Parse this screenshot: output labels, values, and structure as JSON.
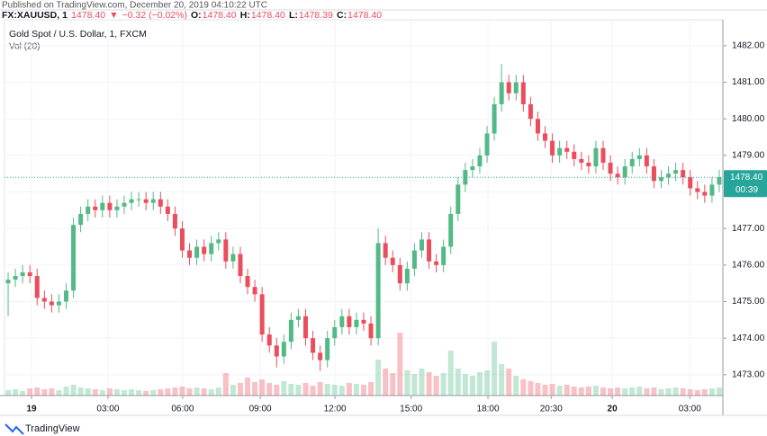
{
  "published": "Published on TradingView.com, December 20, 2019 04:10:22 UTC",
  "header": {
    "symbol": "FX:XAUUSD, 1",
    "price": "1478.40",
    "arrow": "▼",
    "change": "−0.32 (−0.02%)",
    "open_label": "O:",
    "open": "1478.40",
    "high_label": "H:",
    "high": "1478.40",
    "low_label": "L:",
    "low": "1478.39",
    "close_label": "C:",
    "close": "1478.40"
  },
  "footer": {
    "brand": "TradingView"
  },
  "chart_data": {
    "type": "candlestick",
    "title": "Gold Spot / U.S. Dollar, 1, FXCM",
    "volume_label": "Vol (20)",
    "up_color": "#53b987",
    "down_color": "#eb4d5c",
    "grid": true,
    "xlim": [
      0,
      100
    ],
    "ylim": [
      1472.43,
      1482.71
    ],
    "vol_ylim": [
      0,
      100
    ],
    "xticks": [
      {
        "value": 3.76,
        "label": "19"
      },
      {
        "value": 14.4,
        "label": "03:00"
      },
      {
        "value": 24.8,
        "label": "06:00"
      },
      {
        "value": 35.6,
        "label": "09:00"
      },
      {
        "value": 46.0,
        "label": "12:00"
      },
      {
        "value": 56.6,
        "label": "15:00"
      },
      {
        "value": 67.3,
        "label": "18:00"
      },
      {
        "value": 76.1,
        "label": "20:30"
      },
      {
        "value": 84.6,
        "label": "20"
      },
      {
        "value": 95.4,
        "label": "03:00"
      }
    ],
    "yticks": [
      {
        "value": 1473,
        "label": "1473.00"
      },
      {
        "value": 1474,
        "label": "1474.00"
      },
      {
        "value": 1475,
        "label": "1475.00"
      },
      {
        "value": 1476,
        "label": "1476.00"
      },
      {
        "value": 1477,
        "label": "1477.00"
      },
      {
        "value": 1478,
        "label": "1478.00"
      },
      {
        "value": 1479,
        "label": "1479.00"
      },
      {
        "value": 1480,
        "label": "1480.00"
      },
      {
        "value": 1481,
        "label": "1481.00"
      },
      {
        "value": 1482,
        "label": "1482.00"
      }
    ],
    "last_price": {
      "value": 1478.4,
      "label": "1478.40"
    },
    "countdown": "00:39",
    "open": [
      1475.5,
      1475.6,
      1475.7,
      1475.8,
      1475.7,
      1475.1,
      1475.0,
      1474.9,
      1475.0,
      1475.3,
      1477.1,
      1477.4,
      1477.6,
      1477.5,
      1477.7,
      1477.5,
      1477.6,
      1477.7,
      1477.8,
      1477.8,
      1477.7,
      1477.8,
      1477.6,
      1477.4,
      1477.0,
      1476.4,
      1476.2,
      1476.5,
      1476.3,
      1476.6,
      1476.7,
      1476.1,
      1476.3,
      1475.7,
      1475.4,
      1475.2,
      1474.1,
      1473.8,
      1473.5,
      1473.9,
      1474.5,
      1474.6,
      1474.0,
      1473.6,
      1473.4,
      1474.0,
      1474.3,
      1474.6,
      1474.3,
      1474.5,
      1474.4,
      1474.0,
      1476.6,
      1476.2,
      1476.0,
      1475.5,
      1475.9,
      1476.4,
      1476.7,
      1476.1,
      1476.0,
      1476.5,
      1477.4,
      1478.2,
      1478.6,
      1478.7,
      1479.0,
      1479.6,
      1480.4,
      1481.0,
      1480.7,
      1481.0,
      1480.4,
      1480.0,
      1479.6,
      1479.4,
      1479.0,
      1479.2,
      1479.1,
      1478.9,
      1478.8,
      1478.7,
      1479.2,
      1478.8,
      1478.5,
      1478.4,
      1478.7,
      1478.9,
      1479.0,
      1478.7,
      1478.3,
      1478.4,
      1478.5,
      1478.6,
      1478.4,
      1478.1,
      1478.0,
      1477.9,
      1478.2
    ],
    "high": [
      1475.8,
      1475.9,
      1476.0,
      1476.0,
      1475.9,
      1475.3,
      1475.2,
      1475.2,
      1475.5,
      1477.3,
      1477.6,
      1477.8,
      1477.8,
      1477.9,
      1477.9,
      1477.8,
      1477.9,
      1478.0,
      1478.0,
      1478.0,
      1478.0,
      1478.0,
      1477.8,
      1477.6,
      1477.2,
      1476.6,
      1476.7,
      1476.7,
      1476.8,
      1476.9,
      1476.9,
      1476.5,
      1476.5,
      1475.9,
      1475.6,
      1475.4,
      1474.3,
      1474.0,
      1474.1,
      1474.7,
      1474.8,
      1474.8,
      1474.2,
      1473.8,
      1474.2,
      1474.5,
      1474.8,
      1474.8,
      1474.7,
      1474.7,
      1474.6,
      1477.0,
      1476.8,
      1476.4,
      1476.2,
      1476.1,
      1476.6,
      1476.9,
      1476.9,
      1476.3,
      1476.7,
      1477.6,
      1478.4,
      1478.8,
      1478.9,
      1479.2,
      1479.8,
      1480.6,
      1481.5,
      1481.2,
      1481.2,
      1481.2,
      1480.6,
      1480.2,
      1479.8,
      1479.6,
      1479.4,
      1479.4,
      1479.3,
      1479.1,
      1479.0,
      1479.4,
      1479.4,
      1479.0,
      1478.7,
      1478.9,
      1479.1,
      1479.2,
      1479.2,
      1478.9,
      1478.6,
      1478.7,
      1478.8,
      1478.8,
      1478.6,
      1478.3,
      1478.2,
      1478.4,
      1478.6
    ],
    "low": [
      1474.6,
      1475.4,
      1475.5,
      1475.5,
      1474.9,
      1474.8,
      1474.7,
      1474.7,
      1474.8,
      1475.1,
      1476.9,
      1477.2,
      1477.3,
      1477.3,
      1477.3,
      1477.3,
      1477.4,
      1477.5,
      1477.6,
      1477.5,
      1477.5,
      1477.4,
      1477.2,
      1476.8,
      1476.2,
      1476.0,
      1476.0,
      1476.1,
      1476.1,
      1476.4,
      1475.9,
      1475.9,
      1475.5,
      1475.2,
      1475.0,
      1473.9,
      1473.6,
      1473.2,
      1473.3,
      1473.7,
      1474.3,
      1473.8,
      1473.4,
      1473.1,
      1473.2,
      1473.8,
      1474.1,
      1474.1,
      1474.1,
      1474.2,
      1473.8,
      1473.8,
      1476.0,
      1475.8,
      1475.3,
      1475.3,
      1475.7,
      1476.2,
      1475.9,
      1475.8,
      1475.8,
      1476.3,
      1477.2,
      1478.0,
      1478.4,
      1478.5,
      1478.8,
      1479.4,
      1480.2,
      1480.5,
      1480.5,
      1480.2,
      1479.8,
      1479.4,
      1479.2,
      1478.8,
      1478.8,
      1478.9,
      1478.7,
      1478.6,
      1478.5,
      1478.5,
      1478.6,
      1478.3,
      1478.2,
      1478.2,
      1478.5,
      1478.7,
      1478.5,
      1478.1,
      1478.1,
      1478.2,
      1478.3,
      1478.2,
      1477.9,
      1477.8,
      1477.7,
      1477.7,
      1478.0
    ],
    "close": [
      1475.6,
      1475.7,
      1475.8,
      1475.7,
      1475.1,
      1475.0,
      1474.9,
      1475.0,
      1475.3,
      1477.1,
      1477.4,
      1477.6,
      1477.5,
      1477.7,
      1477.5,
      1477.6,
      1477.7,
      1477.8,
      1477.8,
      1477.7,
      1477.8,
      1477.6,
      1477.4,
      1477.0,
      1476.4,
      1476.2,
      1476.5,
      1476.3,
      1476.6,
      1476.7,
      1476.1,
      1476.3,
      1475.7,
      1475.4,
      1475.2,
      1474.1,
      1473.8,
      1473.5,
      1473.9,
      1474.5,
      1474.6,
      1474.0,
      1473.6,
      1473.4,
      1474.0,
      1474.3,
      1474.6,
      1474.3,
      1474.5,
      1474.4,
      1474.0,
      1476.6,
      1476.2,
      1476.0,
      1475.5,
      1475.9,
      1476.4,
      1476.7,
      1476.1,
      1476.0,
      1476.5,
      1477.4,
      1478.2,
      1478.6,
      1478.7,
      1479.0,
      1479.6,
      1480.4,
      1481.0,
      1480.7,
      1481.0,
      1480.4,
      1480.0,
      1479.6,
      1479.4,
      1479.0,
      1479.2,
      1479.1,
      1478.9,
      1478.8,
      1478.7,
      1479.2,
      1478.8,
      1478.5,
      1478.4,
      1478.7,
      1478.9,
      1479.0,
      1478.7,
      1478.3,
      1478.4,
      1478.5,
      1478.6,
      1478.4,
      1478.1,
      1478.0,
      1477.9,
      1478.2,
      1478.4
    ],
    "volume": [
      6,
      7,
      5,
      8,
      9,
      7,
      8,
      6,
      10,
      12,
      9,
      8,
      7,
      6,
      8,
      7,
      6,
      7,
      6,
      5,
      6,
      7,
      8,
      9,
      10,
      8,
      9,
      8,
      7,
      9,
      25,
      12,
      14,
      20,
      15,
      18,
      14,
      12,
      16,
      13,
      12,
      14,
      11,
      15,
      13,
      12,
      11,
      14,
      13,
      12,
      15,
      40,
      30,
      25,
      70,
      28,
      24,
      30,
      26,
      22,
      25,
      50,
      30,
      24,
      22,
      26,
      28,
      60,
      35,
      30,
      22,
      18,
      16,
      14,
      12,
      13,
      11,
      12,
      10,
      9,
      10,
      11,
      9,
      8,
      9,
      8,
      9,
      10,
      8,
      9,
      7,
      8,
      9,
      8,
      7,
      6,
      7,
      8,
      9
    ]
  }
}
